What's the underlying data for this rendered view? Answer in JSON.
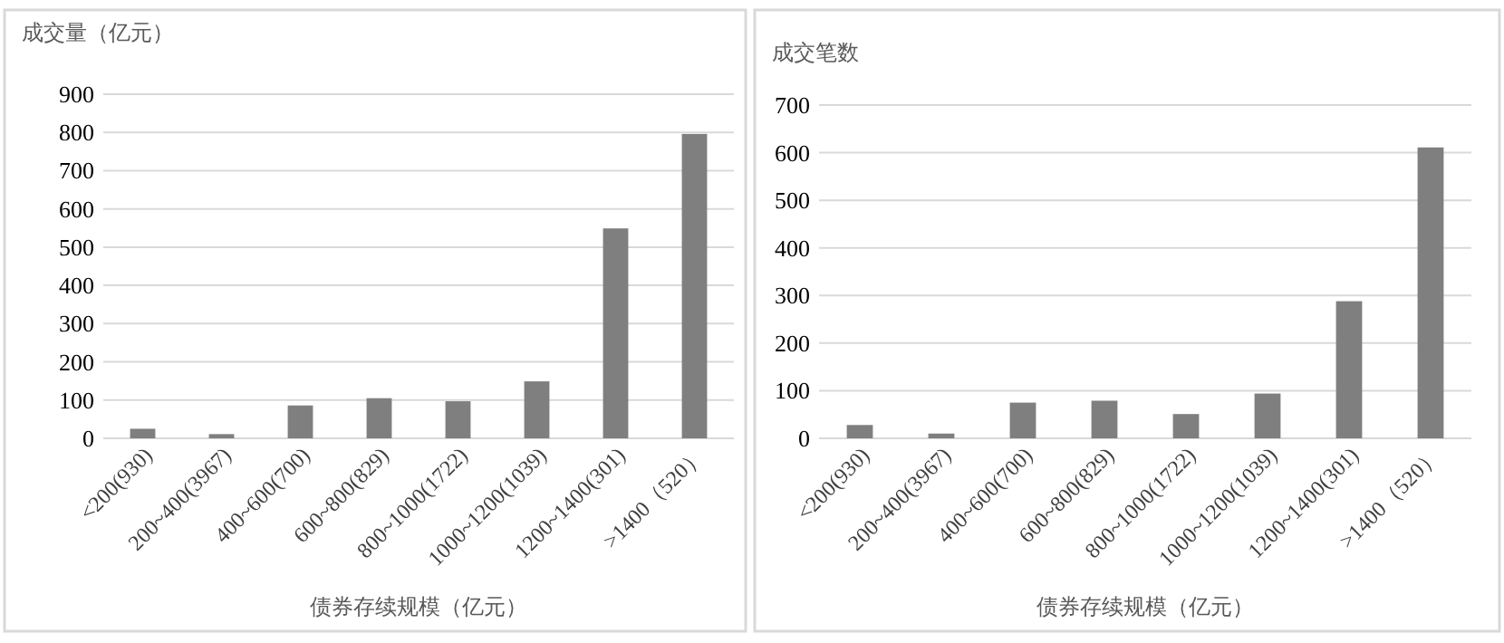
{
  "chart_data": [
    {
      "type": "bar",
      "ylabel": "成交量（亿元）",
      "xlabel": "债券存续规模（亿元）",
      "categories": [
        "<200(930)",
        "200~400(3967)",
        "400~600(700)",
        "600~800(829)",
        "800~1000(1722)",
        "1000~1200(1039)",
        "1200~1400(301)",
        ">1400（520）"
      ],
      "series": [
        {
          "color": "#7f7f7f",
          "values": [
            25,
            11,
            86,
            105,
            97,
            149,
            549,
            796
          ]
        }
      ],
      "ylim": [
        0,
        900
      ],
      "yticks": [
        0,
        100,
        200,
        300,
        400,
        500,
        600,
        700,
        800,
        900
      ],
      "grid": "y"
    },
    {
      "type": "bar",
      "ylabel": "成交笔数",
      "xlabel": "债券存续规模（亿元）",
      "categories": [
        "<200(930)",
        "200~400(3967)",
        "400~600(700)",
        "600~800(829)",
        "800~1000(1722)",
        "1000~1200(1039)",
        "1200~1400(301)",
        ">1400（520）"
      ],
      "series": [
        {
          "color": "#7f7f7f",
          "values": [
            28,
            10,
            75,
            79,
            51,
            94,
            288,
            611
          ]
        }
      ],
      "ylim": [
        0,
        700
      ],
      "yticks": [
        0,
        100,
        200,
        300,
        400,
        500,
        600,
        700
      ],
      "grid": "y"
    }
  ]
}
